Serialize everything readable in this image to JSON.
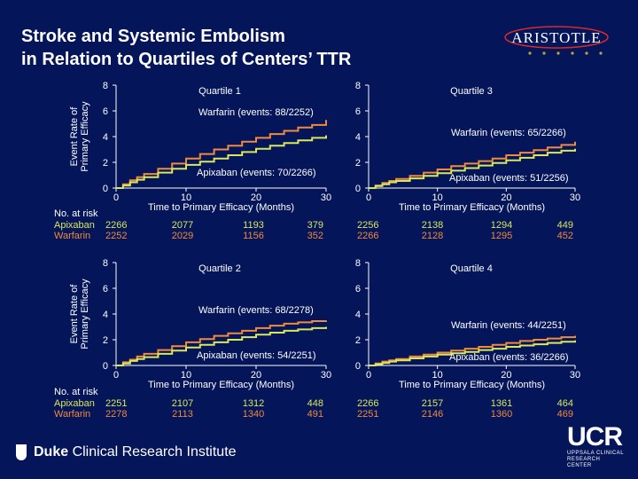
{
  "title_lines": [
    "Stroke and Systemic Embolism",
    "in Relation to Quartiles of Centers’ TTR"
  ],
  "brand": "ARISTOTLE",
  "footer": {
    "duke_bold": "Duke",
    "duke_rest": " Clinical Research Institute",
    "ucr": "UCR",
    "ucr_sub": [
      "UPPSALA CLINICAL",
      "RESEARCH CENTER"
    ]
  },
  "colors": {
    "background": "#05155a",
    "warfarin": "#f08a3c",
    "apixaban": "#d8e85a",
    "text": "#ffffff",
    "accent_red": "#d62b2b"
  },
  "chart_data": [
    {
      "type": "line",
      "title": "Quartile 1",
      "xlabel": "Time to Primary Efficacy (Months)",
      "ylabel": "Event Rate of Primary Efficacy",
      "xlim": [
        0,
        30
      ],
      "ylim": [
        0,
        8
      ],
      "xticks": [
        0,
        10,
        20,
        30
      ],
      "yticks": [
        0,
        2,
        4,
        6,
        8
      ],
      "series": [
        {
          "name": "Warfarin (events: 88/2252)",
          "x": [
            0,
            1,
            2,
            3,
            4,
            6,
            8,
            10,
            12,
            14,
            16,
            18,
            20,
            22,
            24,
            26,
            28,
            30
          ],
          "y": [
            0,
            0.3,
            0.6,
            0.85,
            1.1,
            1.5,
            1.9,
            2.3,
            2.65,
            3.0,
            3.3,
            3.6,
            3.9,
            4.2,
            4.45,
            4.7,
            4.9,
            5.3
          ]
        },
        {
          "name": "Apixaban (events: 70/2266)",
          "x": [
            0,
            1,
            2,
            3,
            4,
            6,
            8,
            10,
            12,
            14,
            16,
            18,
            20,
            22,
            24,
            26,
            28,
            30
          ],
          "y": [
            0,
            0.2,
            0.45,
            0.65,
            0.85,
            1.2,
            1.5,
            1.8,
            2.05,
            2.3,
            2.55,
            2.8,
            3.05,
            3.3,
            3.5,
            3.7,
            3.9,
            4.1
          ]
        }
      ],
      "at_risk": {
        "label": "No. at risk",
        "rows": [
          {
            "name": "Apixaban",
            "values": [
              "2266",
              "2077",
              "1193",
              "379"
            ]
          },
          {
            "name": "Warfarin",
            "values": [
              "2252",
              "2029",
              "1156",
              "352"
            ]
          }
        ]
      }
    },
    {
      "type": "line",
      "title": "Quartile 3",
      "xlabel": "Time to Primary Efficacy (Months)",
      "ylabel": "",
      "xlim": [
        0,
        30
      ],
      "ylim": [
        0,
        8
      ],
      "xticks": [
        0,
        10,
        20,
        30
      ],
      "yticks": [
        0,
        2,
        4,
        6,
        8
      ],
      "series": [
        {
          "name": "Warfarin (events: 65/2266)",
          "x": [
            0,
            1,
            2,
            3,
            4,
            6,
            8,
            10,
            12,
            14,
            16,
            18,
            20,
            22,
            24,
            26,
            28,
            30
          ],
          "y": [
            0,
            0.2,
            0.4,
            0.55,
            0.7,
            0.95,
            1.2,
            1.45,
            1.7,
            1.9,
            2.1,
            2.3,
            2.55,
            2.75,
            2.95,
            3.15,
            3.35,
            3.6
          ]
        },
        {
          "name": "Apixaban (events: 51/2256)",
          "x": [
            0,
            1,
            2,
            3,
            4,
            6,
            8,
            10,
            12,
            14,
            16,
            18,
            20,
            22,
            24,
            26,
            28,
            30
          ],
          "y": [
            0,
            0.15,
            0.3,
            0.45,
            0.55,
            0.75,
            0.95,
            1.15,
            1.35,
            1.55,
            1.75,
            1.95,
            2.15,
            2.35,
            2.55,
            2.75,
            2.9,
            3.05
          ]
        }
      ],
      "at_risk": {
        "label": "",
        "rows": [
          {
            "name": "Apixaban",
            "values": [
              "2256",
              "2138",
              "1294",
              "449"
            ]
          },
          {
            "name": "Warfarin",
            "values": [
              "2266",
              "2128",
              "1295",
              "452"
            ]
          }
        ]
      }
    },
    {
      "type": "line",
      "title": "Quartile 2",
      "xlabel": "Time to Primary Efficacy (Months)",
      "ylabel": "Event Rate of Primary Efficacy",
      "xlim": [
        0,
        30
      ],
      "ylim": [
        0,
        8
      ],
      "xticks": [
        0,
        10,
        20,
        30
      ],
      "yticks": [
        0,
        2,
        4,
        6,
        8
      ],
      "series": [
        {
          "name": "Warfarin (events: 68/2278)",
          "x": [
            0,
            1,
            2,
            3,
            4,
            6,
            8,
            10,
            12,
            14,
            16,
            18,
            20,
            22,
            24,
            26,
            28,
            30
          ],
          "y": [
            0,
            0.25,
            0.45,
            0.7,
            0.9,
            1.2,
            1.5,
            1.8,
            2.05,
            2.3,
            2.5,
            2.7,
            2.9,
            3.1,
            3.25,
            3.35,
            3.45,
            3.5
          ]
        },
        {
          "name": "Apixaban (events: 54/2251)",
          "x": [
            0,
            1,
            2,
            3,
            4,
            6,
            8,
            10,
            12,
            14,
            16,
            18,
            20,
            22,
            24,
            26,
            28,
            30
          ],
          "y": [
            0,
            0.15,
            0.35,
            0.5,
            0.65,
            0.9,
            1.15,
            1.4,
            1.6,
            1.8,
            2.0,
            2.2,
            2.4,
            2.55,
            2.7,
            2.8,
            2.9,
            3.0
          ]
        }
      ],
      "at_risk": {
        "label": "No. at risk",
        "rows": [
          {
            "name": "Apixaban",
            "values": [
              "2251",
              "2107",
              "1312",
              "448"
            ]
          },
          {
            "name": "Warfarin",
            "values": [
              "2278",
              "2113",
              "1340",
              "491"
            ]
          }
        ]
      }
    },
    {
      "type": "line",
      "title": "Quartile 4",
      "xlabel": "Time to Primary Efficacy (Months)",
      "ylabel": "",
      "xlim": [
        0,
        30
      ],
      "ylim": [
        0,
        8
      ],
      "xticks": [
        0,
        10,
        20,
        30
      ],
      "yticks": [
        0,
        2,
        4,
        6,
        8
      ],
      "series": [
        {
          "name": "Warfarin (events: 44/2251)",
          "x": [
            0,
            1,
            2,
            3,
            4,
            6,
            8,
            10,
            12,
            14,
            16,
            18,
            20,
            22,
            24,
            26,
            28,
            30
          ],
          "y": [
            0,
            0.15,
            0.3,
            0.4,
            0.5,
            0.7,
            0.85,
            1.0,
            1.15,
            1.3,
            1.45,
            1.6,
            1.75,
            1.9,
            2.0,
            2.1,
            2.2,
            2.3
          ]
        },
        {
          "name": "Apixaban (events: 36/2266)",
          "x": [
            0,
            1,
            2,
            3,
            4,
            6,
            8,
            10,
            12,
            14,
            16,
            18,
            20,
            22,
            24,
            26,
            28,
            30
          ],
          "y": [
            0,
            0.1,
            0.2,
            0.3,
            0.4,
            0.55,
            0.7,
            0.85,
            0.95,
            1.05,
            1.2,
            1.3,
            1.45,
            1.55,
            1.65,
            1.75,
            1.85,
            1.95
          ]
        }
      ],
      "at_risk": {
        "label": "",
        "rows": [
          {
            "name": "Apixaban",
            "values": [
              "2266",
              "2157",
              "1361",
              "464"
            ]
          },
          {
            "name": "Warfarin",
            "values": [
              "2251",
              "2146",
              "1360",
              "469"
            ]
          }
        ]
      }
    }
  ]
}
